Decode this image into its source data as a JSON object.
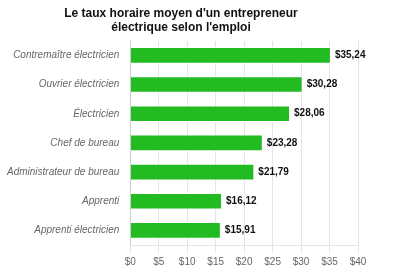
{
  "chart_data": {
    "type": "bar",
    "orientation": "horizontal",
    "title": "Le taux horaire moyen d'un entrepreneur\nélectrique selon l'emploi",
    "categories": [
      "Apprenti électricien",
      "Apprenti",
      "Administrateur de bureau",
      "Chef de bureau",
      "Électricien",
      "Ouvrier électricien",
      "Contremaître électricien"
    ],
    "values": [
      15.91,
      16.12,
      21.79,
      23.28,
      28.06,
      30.28,
      35.24
    ],
    "value_labels": [
      "$15,91",
      "$16,12",
      "$21,79",
      "$23,28",
      "$28,06",
      "$30,28",
      "$35,24"
    ],
    "data_labels": true,
    "color": "#22bb22",
    "xlim": [
      0,
      40
    ],
    "xticks": [
      {
        "value": 0,
        "label": "$0"
      },
      {
        "value": 5,
        "label": "$5"
      },
      {
        "value": 10,
        "label": "$10"
      },
      {
        "value": 15,
        "label": "$15"
      },
      {
        "value": 20,
        "label": "$20"
      },
      {
        "value": 25,
        "label": "$25"
      },
      {
        "value": 30,
        "label": "$30"
      },
      {
        "value": 35,
        "label": "$35"
      },
      {
        "value": 40,
        "label": "$40"
      }
    ],
    "grid": true
  }
}
